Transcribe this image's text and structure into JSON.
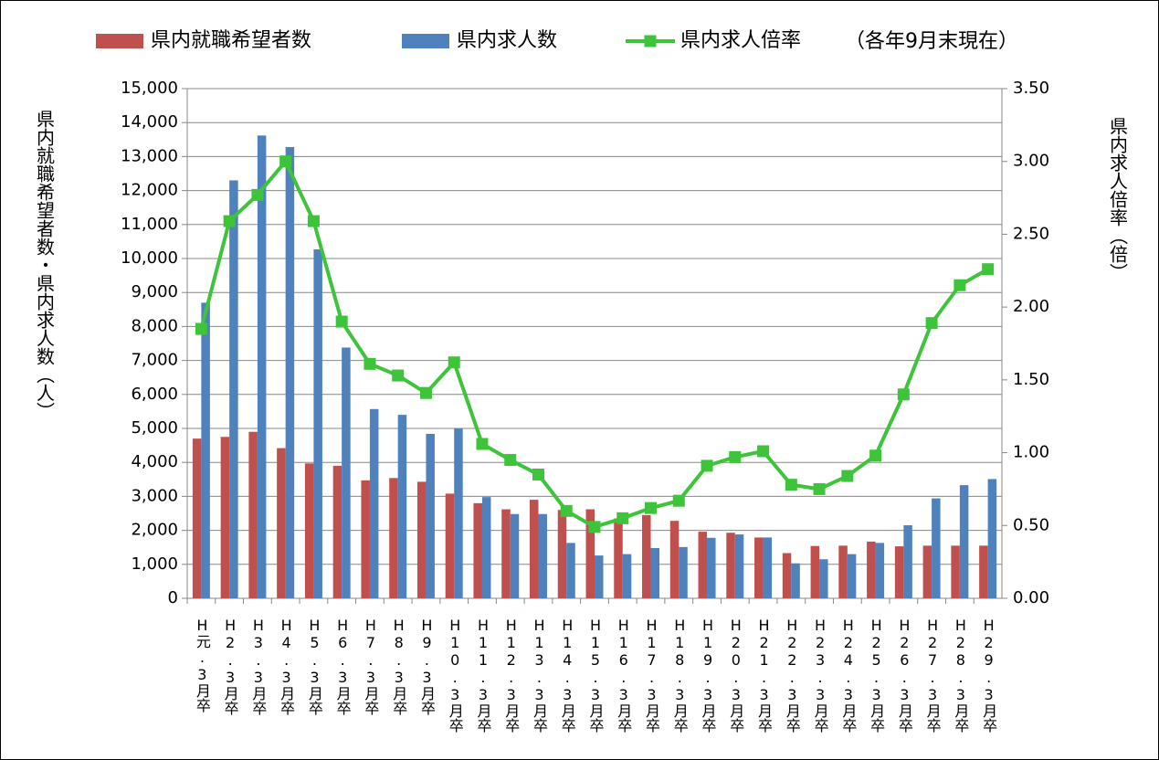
{
  "chart_data": {
    "type": "bar-line",
    "legend_note": "（各年9月末現在）",
    "y_label": "県内就職希望者数・県内求人数（人）",
    "y2_label": "県内求人倍率（倍）",
    "categories": [
      "H元.3月卒",
      "H2.3月卒",
      "H3.3月卒",
      "H4.3月卒",
      "H5.3月卒",
      "H6.3月卒",
      "H7.3月卒",
      "H8.3月卒",
      "H9.3月卒",
      "H10.3月卒",
      "H11.3月卒",
      "H12.3月卒",
      "H13.3月卒",
      "H14.3月卒",
      "H15.3月卒",
      "H16.3月卒",
      "H17.3月卒",
      "H18.3月卒",
      "H19.3月卒",
      "H20.3月卒",
      "H21.3月卒",
      "H22.3月卒",
      "H23.3月卒",
      "H24.3月卒",
      "H25.3月卒",
      "H26.3月卒",
      "H27.3月卒",
      "H28.3月卒",
      "H29.3月卒"
    ],
    "series": [
      {
        "name": "県内就職希望者数",
        "type": "bar",
        "color": "#c0504d",
        "values": [
          4700,
          4750,
          4900,
          4420,
          3970,
          3900,
          3470,
          3540,
          3430,
          3080,
          2800,
          2620,
          2900,
          2600,
          2620,
          2350,
          2450,
          2280,
          1960,
          1930,
          1790,
          1330,
          1540,
          1550,
          1670,
          1530,
          1550,
          1550,
          1550
        ]
      },
      {
        "name": "県内求人数",
        "type": "bar",
        "color": "#4f81bd",
        "values": [
          8700,
          12300,
          13620,
          13280,
          10270,
          7380,
          5570,
          5400,
          4840,
          4990,
          2980,
          2480,
          2480,
          1630,
          1260,
          1300,
          1480,
          1510,
          1780,
          1880,
          1790,
          1030,
          1150,
          1300,
          1630,
          2150,
          2940,
          3330,
          3510
        ]
      },
      {
        "name": "県内求人倍率",
        "type": "line",
        "axis": "y2",
        "color": "#3ec43a",
        "values": [
          1.85,
          2.59,
          2.77,
          3.0,
          2.59,
          1.9,
          1.61,
          1.53,
          1.41,
          1.62,
          1.06,
          0.95,
          0.85,
          0.6,
          0.49,
          0.55,
          0.62,
          0.67,
          0.91,
          0.97,
          1.01,
          0.78,
          0.75,
          0.84,
          0.98,
          1.4,
          1.89,
          2.15,
          2.26
        ]
      }
    ],
    "ylim": [
      0,
      15000
    ],
    "yticks": [
      0,
      {
        "value": 1000,
        "label": "1,000"
      },
      {
        "value": 2000,
        "label": "2,000"
      },
      {
        "value": 3000,
        "label": "3,000"
      },
      {
        "value": 4000,
        "label": "4,000"
      },
      {
        "value": 5000,
        "label": "5,000"
      },
      {
        "value": 6000,
        "label": "6,000"
      },
      {
        "value": 7000,
        "label": "7,000"
      },
      {
        "value": 8000,
        "label": "8,000"
      },
      {
        "value": 9000,
        "label": "9,000"
      },
      {
        "value": 10000,
        "label": "10,000"
      },
      {
        "value": 11000,
        "label": "11,000"
      },
      {
        "value": 12000,
        "label": "12,000"
      },
      {
        "value": 13000,
        "label": "13,000"
      },
      {
        "value": 14000,
        "label": "14,000"
      },
      {
        "value": 15000,
        "label": "15,000"
      }
    ],
    "y2lim": [
      0,
      3.5
    ],
    "y2ticks": [
      {
        "value": 0,
        "label": "0.00"
      },
      {
        "value": 0.5,
        "label": "0.50"
      },
      {
        "value": 1,
        "label": "1.00"
      },
      {
        "value": 1.5,
        "label": "1.50"
      },
      {
        "value": 2,
        "label": "2.00"
      },
      {
        "value": 2.5,
        "label": "2.50"
      },
      {
        "value": 3,
        "label": "3.00"
      },
      {
        "value": 3.5,
        "label": "3.50"
      }
    ],
    "grid": true
  }
}
